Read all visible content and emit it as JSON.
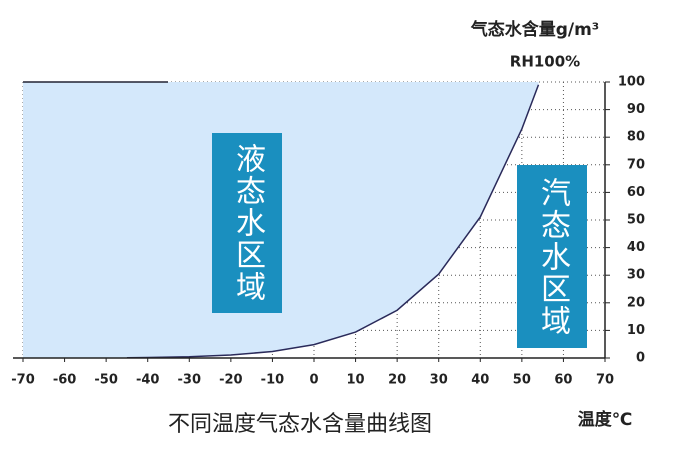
{
  "chart_data": {
    "type": "area-line",
    "title": "不同温度气态水含量曲线图",
    "y_label": "气态水含量g/m³",
    "x_label": "温度℃",
    "series": [
      {
        "name": "RH100%",
        "color": "#2a2a5a",
        "fill": "#d4e8fb",
        "x": [
          -45,
          -40,
          -30,
          -20,
          -10,
          0,
          10,
          20,
          30,
          40,
          50,
          54
        ],
        "values": [
          0.1,
          0.18,
          0.45,
          1.07,
          2.36,
          4.85,
          9.4,
          17.3,
          30.4,
          51.1,
          83.0,
          99
        ]
      }
    ],
    "xlim": [
      -70,
      70
    ],
    "xticks": [
      -70,
      -60,
      -50,
      -40,
      -30,
      -20,
      -10,
      0,
      10,
      20,
      30,
      40,
      50,
      60,
      70
    ],
    "ylim": [
      0,
      100
    ],
    "yticks": [
      0,
      10,
      20,
      30,
      40,
      50,
      60,
      70,
      80,
      90,
      100
    ],
    "grid": true,
    "annotations": [
      "液态水区域",
      "汽态水区域"
    ],
    "annotation_color": "#1a8fbf"
  }
}
